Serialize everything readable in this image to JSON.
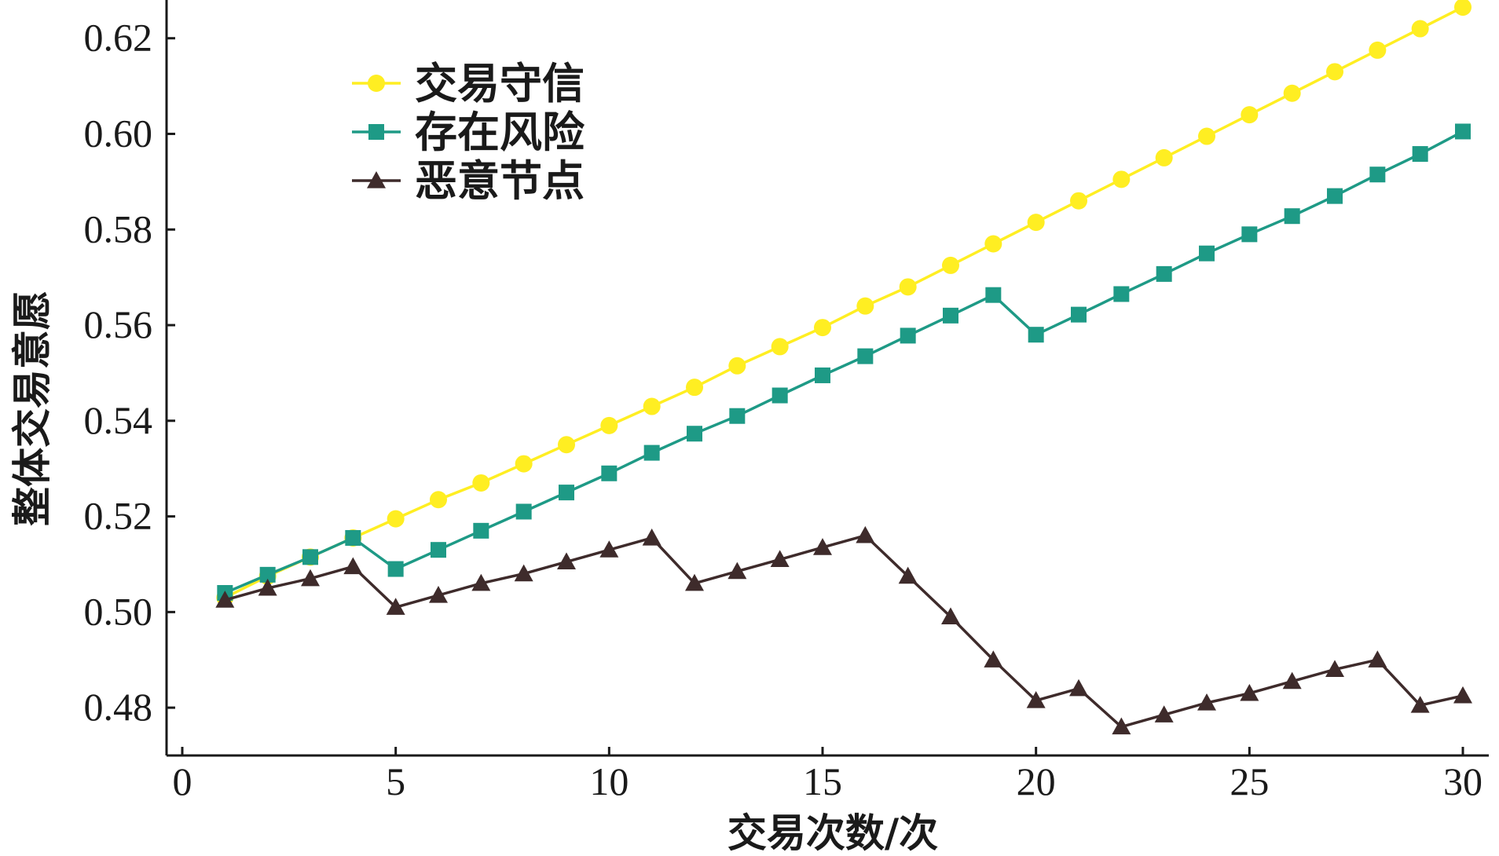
{
  "chart_data": {
    "type": "line",
    "title": "",
    "xlabel": "交易次数/次",
    "ylabel": "整体交易意愿",
    "xlim": [
      0,
      30
    ],
    "ylim": [
      0.47,
      0.628
    ],
    "xticks": [
      "0",
      "5",
      "10",
      "15",
      "20",
      "25",
      "30"
    ],
    "xtick_values": [
      0,
      5,
      10,
      15,
      20,
      25,
      30
    ],
    "yticks": [
      "0.48",
      "0.50",
      "0.52",
      "0.54",
      "0.56",
      "0.58",
      "0.60",
      "0.62"
    ],
    "ytick_values": [
      0.48,
      0.5,
      0.52,
      0.54,
      0.56,
      0.58,
      0.6,
      0.62
    ],
    "grid": false,
    "legend_position": "top-left",
    "x": [
      1,
      2,
      3,
      4,
      5,
      6,
      7,
      8,
      9,
      10,
      11,
      12,
      13,
      14,
      15,
      16,
      17,
      18,
      19,
      20,
      21,
      22,
      23,
      24,
      25,
      26,
      27,
      28,
      29,
      30
    ],
    "series": [
      {
        "name": "交易守信",
        "color": "#ffee22",
        "marker": "circle",
        "values": [
          0.503,
          0.5075,
          0.5115,
          0.5155,
          0.5195,
          0.5235,
          0.527,
          0.531,
          0.535,
          0.539,
          0.543,
          0.547,
          0.5515,
          0.5555,
          0.5595,
          0.564,
          0.568,
          0.5725,
          0.577,
          0.5815,
          0.586,
          0.5905,
          0.595,
          0.5995,
          0.604,
          0.6085,
          0.613,
          0.6175,
          0.622,
          0.6265
        ]
      },
      {
        "name": "存在风险",
        "color": "#1e9a86",
        "marker": "square",
        "values": [
          0.504,
          0.5078,
          0.5115,
          0.5155,
          0.509,
          0.513,
          0.517,
          0.521,
          0.525,
          0.529,
          0.5333,
          0.5373,
          0.541,
          0.5453,
          0.5495,
          0.5535,
          0.5578,
          0.562,
          0.5663,
          0.558,
          0.5622,
          0.5665,
          0.5707,
          0.575,
          0.579,
          0.5828,
          0.587,
          0.5915,
          0.5958,
          0.6005
        ]
      },
      {
        "name": "恶意节点",
        "color": "#3e2b2b",
        "marker": "triangle",
        "values": [
          0.5025,
          0.505,
          0.507,
          0.5095,
          0.501,
          0.5035,
          0.506,
          0.508,
          0.5105,
          0.513,
          0.5155,
          0.506,
          0.5085,
          0.511,
          0.5135,
          0.516,
          0.5075,
          0.499,
          0.49,
          0.4815,
          0.484,
          0.476,
          0.4785,
          0.481,
          0.483,
          0.4855,
          0.488,
          0.49,
          0.4805,
          0.4825
        ]
      }
    ]
  }
}
